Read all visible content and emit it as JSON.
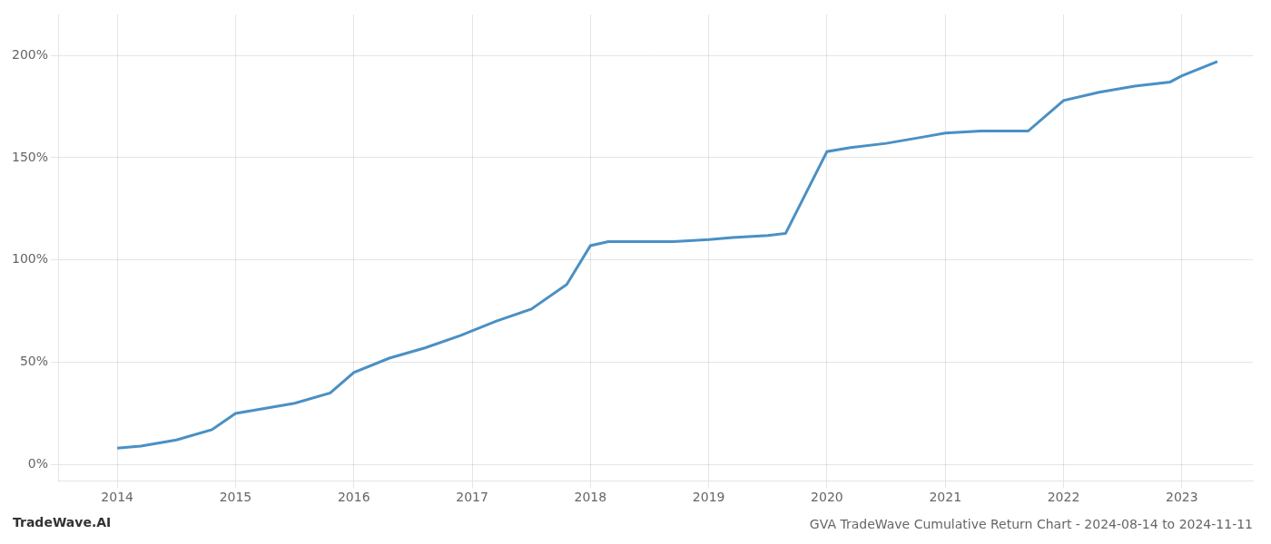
{
  "chart_data": {
    "type": "line",
    "title": "GVA TradeWave Cumulative Return Chart - 2024-08-14 to 2024-11-11",
    "annotations": [
      "TradeWave.AI"
    ],
    "x": [
      2014.0,
      2014.2,
      2014.5,
      2014.8,
      2015.0,
      2015.2,
      2015.5,
      2015.8,
      2016.0,
      2016.3,
      2016.6,
      2016.9,
      2017.2,
      2017.5,
      2017.8,
      2018.0,
      2018.15,
      2018.4,
      2018.7,
      2019.0,
      2019.2,
      2019.5,
      2019.65,
      2020.0,
      2020.2,
      2020.5,
      2020.8,
      2021.0,
      2021.3,
      2021.7,
      2022.0,
      2022.3,
      2022.6,
      2022.9,
      2023.0,
      2023.3
    ],
    "values": [
      8,
      9,
      12,
      17,
      25,
      27,
      30,
      35,
      45,
      52,
      57,
      63,
      70,
      76,
      88,
      107,
      109,
      109,
      109,
      110,
      111,
      112,
      113,
      153,
      155,
      157,
      160,
      162,
      163,
      163,
      178,
      182,
      185,
      187,
      190,
      197
    ],
    "color": "#4a90c4",
    "xlim": [
      2013.5,
      2023.6
    ],
    "ylim": [
      -8,
      220
    ],
    "xticks": [
      2014,
      2015,
      2016,
      2017,
      2018,
      2019,
      2020,
      2021,
      2022,
      2023
    ],
    "yticks": [
      {
        "value": 0,
        "label": "0%"
      },
      {
        "value": 50,
        "label": "50%"
      },
      {
        "value": 100,
        "label": "100%"
      },
      {
        "value": 150,
        "label": "150%"
      },
      {
        "value": 200,
        "label": "200%"
      }
    ],
    "grid": true
  }
}
